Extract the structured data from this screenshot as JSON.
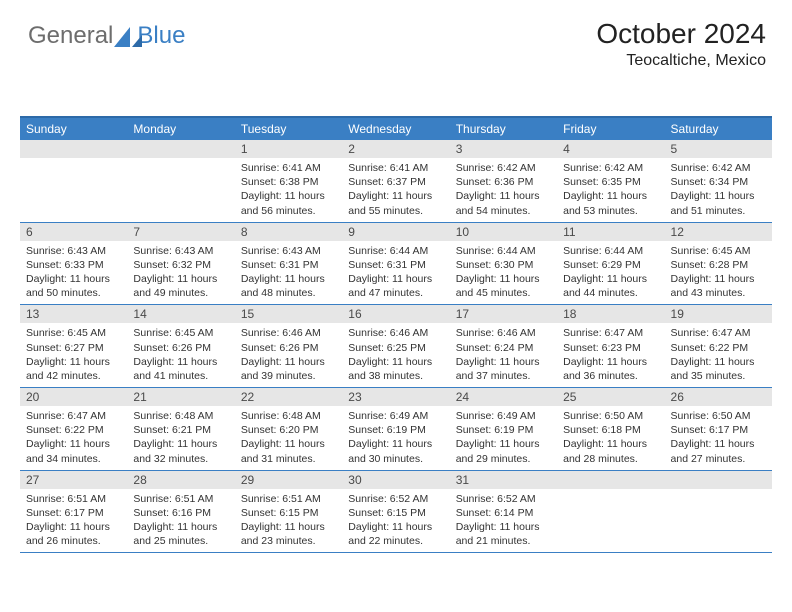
{
  "logo": {
    "text_left": "General",
    "text_right": "Blue"
  },
  "header": {
    "month_title": "October 2024",
    "location": "Teocaltiche, Mexico"
  },
  "days_of_week": [
    "Sunday",
    "Monday",
    "Tuesday",
    "Wednesday",
    "Thursday",
    "Friday",
    "Saturday"
  ],
  "colors": {
    "header_bg": "#3a7fc4",
    "header_border": "#2d6aa8",
    "row_divider": "#3a7fc4",
    "daynum_bg": "#e6e6e6",
    "logo_gray": "#6d6d6d",
    "logo_blue": "#3a7fc4"
  },
  "weeks": [
    [
      null,
      null,
      {
        "day": "1",
        "sunrise": "6:41 AM",
        "sunset": "6:38 PM",
        "daylight": "11 hours and 56 minutes."
      },
      {
        "day": "2",
        "sunrise": "6:41 AM",
        "sunset": "6:37 PM",
        "daylight": "11 hours and 55 minutes."
      },
      {
        "day": "3",
        "sunrise": "6:42 AM",
        "sunset": "6:36 PM",
        "daylight": "11 hours and 54 minutes."
      },
      {
        "day": "4",
        "sunrise": "6:42 AM",
        "sunset": "6:35 PM",
        "daylight": "11 hours and 53 minutes."
      },
      {
        "day": "5",
        "sunrise": "6:42 AM",
        "sunset": "6:34 PM",
        "daylight": "11 hours and 51 minutes."
      }
    ],
    [
      {
        "day": "6",
        "sunrise": "6:43 AM",
        "sunset": "6:33 PM",
        "daylight": "11 hours and 50 minutes."
      },
      {
        "day": "7",
        "sunrise": "6:43 AM",
        "sunset": "6:32 PM",
        "daylight": "11 hours and 49 minutes."
      },
      {
        "day": "8",
        "sunrise": "6:43 AM",
        "sunset": "6:31 PM",
        "daylight": "11 hours and 48 minutes."
      },
      {
        "day": "9",
        "sunrise": "6:44 AM",
        "sunset": "6:31 PM",
        "daylight": "11 hours and 47 minutes."
      },
      {
        "day": "10",
        "sunrise": "6:44 AM",
        "sunset": "6:30 PM",
        "daylight": "11 hours and 45 minutes."
      },
      {
        "day": "11",
        "sunrise": "6:44 AM",
        "sunset": "6:29 PM",
        "daylight": "11 hours and 44 minutes."
      },
      {
        "day": "12",
        "sunrise": "6:45 AM",
        "sunset": "6:28 PM",
        "daylight": "11 hours and 43 minutes."
      }
    ],
    [
      {
        "day": "13",
        "sunrise": "6:45 AM",
        "sunset": "6:27 PM",
        "daylight": "11 hours and 42 minutes."
      },
      {
        "day": "14",
        "sunrise": "6:45 AM",
        "sunset": "6:26 PM",
        "daylight": "11 hours and 41 minutes."
      },
      {
        "day": "15",
        "sunrise": "6:46 AM",
        "sunset": "6:26 PM",
        "daylight": "11 hours and 39 minutes."
      },
      {
        "day": "16",
        "sunrise": "6:46 AM",
        "sunset": "6:25 PM",
        "daylight": "11 hours and 38 minutes."
      },
      {
        "day": "17",
        "sunrise": "6:46 AM",
        "sunset": "6:24 PM",
        "daylight": "11 hours and 37 minutes."
      },
      {
        "day": "18",
        "sunrise": "6:47 AM",
        "sunset": "6:23 PM",
        "daylight": "11 hours and 36 minutes."
      },
      {
        "day": "19",
        "sunrise": "6:47 AM",
        "sunset": "6:22 PM",
        "daylight": "11 hours and 35 minutes."
      }
    ],
    [
      {
        "day": "20",
        "sunrise": "6:47 AM",
        "sunset": "6:22 PM",
        "daylight": "11 hours and 34 minutes."
      },
      {
        "day": "21",
        "sunrise": "6:48 AM",
        "sunset": "6:21 PM",
        "daylight": "11 hours and 32 minutes."
      },
      {
        "day": "22",
        "sunrise": "6:48 AM",
        "sunset": "6:20 PM",
        "daylight": "11 hours and 31 minutes."
      },
      {
        "day": "23",
        "sunrise": "6:49 AM",
        "sunset": "6:19 PM",
        "daylight": "11 hours and 30 minutes."
      },
      {
        "day": "24",
        "sunrise": "6:49 AM",
        "sunset": "6:19 PM",
        "daylight": "11 hours and 29 minutes."
      },
      {
        "day": "25",
        "sunrise": "6:50 AM",
        "sunset": "6:18 PM",
        "daylight": "11 hours and 28 minutes."
      },
      {
        "day": "26",
        "sunrise": "6:50 AM",
        "sunset": "6:17 PM",
        "daylight": "11 hours and 27 minutes."
      }
    ],
    [
      {
        "day": "27",
        "sunrise": "6:51 AM",
        "sunset": "6:17 PM",
        "daylight": "11 hours and 26 minutes."
      },
      {
        "day": "28",
        "sunrise": "6:51 AM",
        "sunset": "6:16 PM",
        "daylight": "11 hours and 25 minutes."
      },
      {
        "day": "29",
        "sunrise": "6:51 AM",
        "sunset": "6:15 PM",
        "daylight": "11 hours and 23 minutes."
      },
      {
        "day": "30",
        "sunrise": "6:52 AM",
        "sunset": "6:15 PM",
        "daylight": "11 hours and 22 minutes."
      },
      {
        "day": "31",
        "sunrise": "6:52 AM",
        "sunset": "6:14 PM",
        "daylight": "11 hours and 21 minutes."
      },
      null,
      null
    ]
  ],
  "labels": {
    "sunrise_prefix": "Sunrise: ",
    "sunset_prefix": "Sunset: ",
    "daylight_prefix": "Daylight: "
  }
}
